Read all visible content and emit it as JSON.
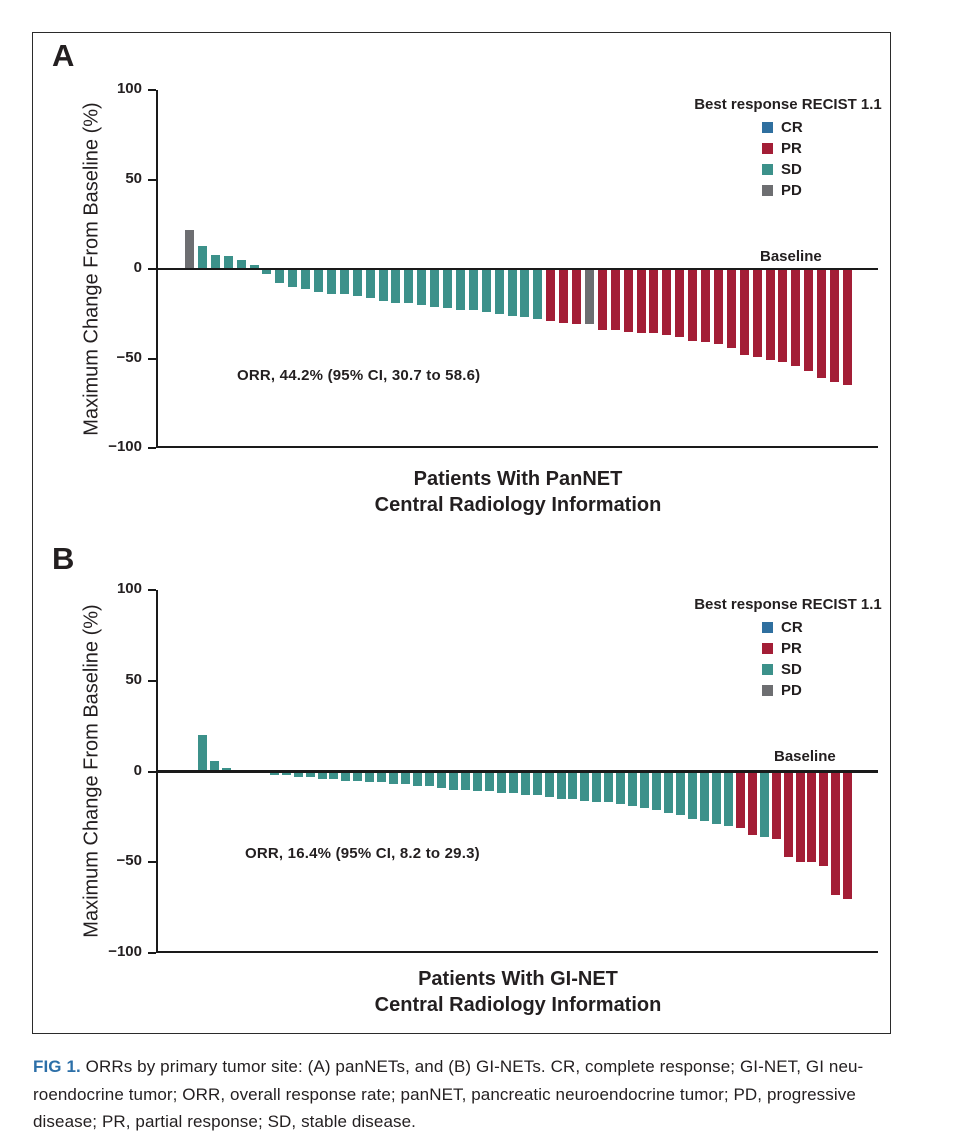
{
  "figure": {
    "panel_a_label": "A",
    "panel_b_label": "B"
  },
  "legend": {
    "title": "Best response RECIST 1.1",
    "entries": [
      {
        "key": "CR",
        "label": "CR"
      },
      {
        "key": "PR",
        "label": "PR"
      },
      {
        "key": "SD",
        "label": "SD"
      },
      {
        "key": "PD",
        "label": "PD"
      }
    ],
    "colors": {
      "CR": "#2f6f9f",
      "PR": "#a31e36",
      "SD": "#3c918a",
      "PD": "#6d6e71"
    }
  },
  "chart_data": [
    {
      "type": "bar",
      "subtype": "waterfall",
      "panel": "A",
      "ylabel": "Maximum Change From Baseline (%)",
      "xlabel_line1": "Patients With PanNET",
      "xlabel_line2": "Central Radiology Information",
      "ylim": [
        -100,
        100
      ],
      "yticks": [
        100,
        50,
        0,
        -50,
        -100
      ],
      "ytick_labels": [
        "100",
        "50",
        "0",
        "−50",
        "−100"
      ],
      "annotation": "ORR, 44.2% (95% CI, 30.7 to 58.6)",
      "baseline_label": "Baseline",
      "legend_position": "upper right",
      "grid": false,
      "bars": [
        {
          "v": 22,
          "r": "PD"
        },
        {
          "v": 13,
          "r": "SD"
        },
        {
          "v": 8,
          "r": "SD"
        },
        {
          "v": 7,
          "r": "SD"
        },
        {
          "v": 5,
          "r": "SD"
        },
        {
          "v": 2,
          "r": "SD"
        },
        {
          "v": -3,
          "r": "SD"
        },
        {
          "v": -8,
          "r": "SD"
        },
        {
          "v": -10,
          "r": "SD"
        },
        {
          "v": -11,
          "r": "SD"
        },
        {
          "v": -13,
          "r": "SD"
        },
        {
          "v": -14,
          "r": "SD"
        },
        {
          "v": -14,
          "r": "SD"
        },
        {
          "v": -15,
          "r": "SD"
        },
        {
          "v": -16,
          "r": "SD"
        },
        {
          "v": -18,
          "r": "SD"
        },
        {
          "v": -19,
          "r": "SD"
        },
        {
          "v": -19,
          "r": "SD"
        },
        {
          "v": -20,
          "r": "SD"
        },
        {
          "v": -21,
          "r": "SD"
        },
        {
          "v": -22,
          "r": "SD"
        },
        {
          "v": -23,
          "r": "SD"
        },
        {
          "v": -23,
          "r": "SD"
        },
        {
          "v": -24,
          "r": "SD"
        },
        {
          "v": -25,
          "r": "SD"
        },
        {
          "v": -26,
          "r": "SD"
        },
        {
          "v": -27,
          "r": "SD"
        },
        {
          "v": -28,
          "r": "SD"
        },
        {
          "v": -29,
          "r": "PR"
        },
        {
          "v": -30,
          "r": "PR"
        },
        {
          "v": -31,
          "r": "PR"
        },
        {
          "v": -31,
          "r": "PD"
        },
        {
          "v": -34,
          "r": "PR"
        },
        {
          "v": -34,
          "r": "PR"
        },
        {
          "v": -35,
          "r": "PR"
        },
        {
          "v": -36,
          "r": "PR"
        },
        {
          "v": -36,
          "r": "PR"
        },
        {
          "v": -37,
          "r": "PR"
        },
        {
          "v": -38,
          "r": "PR"
        },
        {
          "v": -40,
          "r": "PR"
        },
        {
          "v": -41,
          "r": "PR"
        },
        {
          "v": -42,
          "r": "PR"
        },
        {
          "v": -44,
          "r": "PR"
        },
        {
          "v": -48,
          "r": "PR"
        },
        {
          "v": -49,
          "r": "PR"
        },
        {
          "v": -51,
          "r": "PR"
        },
        {
          "v": -52,
          "r": "PR"
        },
        {
          "v": -54,
          "r": "PR"
        },
        {
          "v": -57,
          "r": "PR"
        },
        {
          "v": -61,
          "r": "PR"
        },
        {
          "v": -63,
          "r": "PR"
        },
        {
          "v": -65,
          "r": "PR"
        }
      ]
    },
    {
      "type": "bar",
      "subtype": "waterfall",
      "panel": "B",
      "ylabel": "Maximum Change From Baseline (%)",
      "xlabel_line1": "Patients With GI-NET",
      "xlabel_line2": "Central Radiology Information",
      "ylim": [
        -100,
        100
      ],
      "yticks": [
        100,
        50,
        0,
        -50,
        -100
      ],
      "ytick_labels": [
        "100",
        "50",
        "0",
        "−50",
        "−100"
      ],
      "annotation": "ORR, 16.4% (95% CI, 8.2 to 29.3)",
      "baseline_label": "Baseline",
      "legend_position": "upper right",
      "grid": false,
      "bars": [
        {
          "v": 20,
          "r": "SD"
        },
        {
          "v": 6,
          "r": "SD"
        },
        {
          "v": 2,
          "r": "SD"
        },
        {
          "v": 1,
          "r": "SD"
        },
        {
          "v": 0,
          "r": "SD"
        },
        {
          "v": -1,
          "r": "SD"
        },
        {
          "v": -2,
          "r": "SD"
        },
        {
          "v": -2,
          "r": "SD"
        },
        {
          "v": -3,
          "r": "SD"
        },
        {
          "v": -3,
          "r": "SD"
        },
        {
          "v": -4,
          "r": "SD"
        },
        {
          "v": -4,
          "r": "SD"
        },
        {
          "v": -5,
          "r": "SD"
        },
        {
          "v": -5,
          "r": "SD"
        },
        {
          "v": -6,
          "r": "SD"
        },
        {
          "v": -6,
          "r": "SD"
        },
        {
          "v": -7,
          "r": "SD"
        },
        {
          "v": -7,
          "r": "SD"
        },
        {
          "v": -8,
          "r": "SD"
        },
        {
          "v": -8,
          "r": "SD"
        },
        {
          "v": -9,
          "r": "SD"
        },
        {
          "v": -10,
          "r": "SD"
        },
        {
          "v": -10,
          "r": "SD"
        },
        {
          "v": -11,
          "r": "SD"
        },
        {
          "v": -11,
          "r": "SD"
        },
        {
          "v": -12,
          "r": "SD"
        },
        {
          "v": -12,
          "r": "SD"
        },
        {
          "v": -13,
          "r": "SD"
        },
        {
          "v": -13,
          "r": "SD"
        },
        {
          "v": -14,
          "r": "SD"
        },
        {
          "v": -15,
          "r": "SD"
        },
        {
          "v": -15,
          "r": "SD"
        },
        {
          "v": -16,
          "r": "SD"
        },
        {
          "v": -17,
          "r": "SD"
        },
        {
          "v": -17,
          "r": "SD"
        },
        {
          "v": -18,
          "r": "SD"
        },
        {
          "v": -19,
          "r": "SD"
        },
        {
          "v": -20,
          "r": "SD"
        },
        {
          "v": -21,
          "r": "SD"
        },
        {
          "v": -23,
          "r": "SD"
        },
        {
          "v": -24,
          "r": "SD"
        },
        {
          "v": -26,
          "r": "SD"
        },
        {
          "v": -27,
          "r": "SD"
        },
        {
          "v": -29,
          "r": "SD"
        },
        {
          "v": -30,
          "r": "SD"
        },
        {
          "v": -31,
          "r": "PR"
        },
        {
          "v": -35,
          "r": "PR"
        },
        {
          "v": -36,
          "r": "SD"
        },
        {
          "v": -37,
          "r": "PR"
        },
        {
          "v": -47,
          "r": "PR"
        },
        {
          "v": -50,
          "r": "PR"
        },
        {
          "v": -50,
          "r": "PR"
        },
        {
          "v": -52,
          "r": "PR"
        },
        {
          "v": -68,
          "r": "PR"
        },
        {
          "v": -70,
          "r": "PR"
        }
      ]
    }
  ],
  "caption": {
    "fig_label": "FIG 1.",
    "line1": "ORRs by primary tumor site: (A) panNETs, and (B) GI-NETs. CR, complete response; GI-NET, GI neu-",
    "line2": "roendocrine tumor; ORR, overall response rate; panNET, pancreatic neuroendocrine tumor; PD, progressive",
    "line3": "disease; PR, partial response; SD, stable disease."
  }
}
